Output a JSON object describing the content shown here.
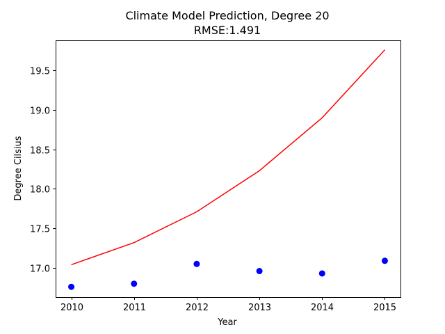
{
  "chart_data": {
    "type": "line",
    "title": "Climate Model Prediction, Degree 20",
    "subtitle": "RMSE:1.491",
    "xlabel": "Year",
    "ylabel": "Degree Cilsius",
    "xlim": [
      2009.75,
      2015.25
    ],
    "ylim": [
      16.63,
      19.88
    ],
    "x_ticks": [
      2010,
      2011,
      2012,
      2013,
      2014,
      2015
    ],
    "x_tick_labels": [
      "2010",
      "2011",
      "2012",
      "2013",
      "2014",
      "2015"
    ],
    "y_ticks": [
      17.0,
      17.5,
      18.0,
      18.5,
      19.0,
      19.5
    ],
    "y_tick_labels": [
      "17.0",
      "17.5",
      "18.0",
      "18.5",
      "19.0",
      "19.5"
    ],
    "grid": false,
    "series": [
      {
        "type": "scatter",
        "color": "#0000ff",
        "x": [
          2010,
          2011,
          2012,
          2013,
          2014,
          2015
        ],
        "y": [
          16.76,
          16.8,
          17.05,
          16.96,
          16.93,
          17.09
        ]
      },
      {
        "type": "line",
        "color": "#ff0000",
        "x": [
          2010,
          2011,
          2012,
          2013,
          2014,
          2015
        ],
        "y": [
          17.04,
          17.32,
          17.71,
          18.23,
          18.9,
          19.76
        ]
      }
    ]
  }
}
